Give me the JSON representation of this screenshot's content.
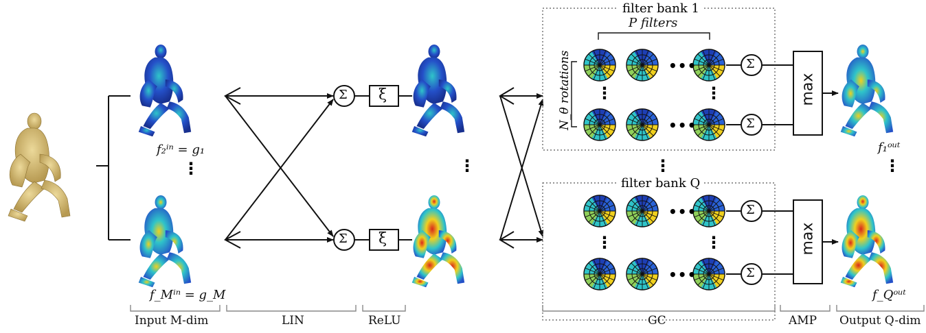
{
  "labels": {
    "input": "Input M-dim",
    "lin": "LIN",
    "relu": "ReLU",
    "gc": "GC",
    "amp": "AMP",
    "output": "Output Q-dim",
    "f2": "f₂ⁱⁿ = g₁",
    "fM": "f_Mⁱⁿ = g_M",
    "f1out": "f₁ᵒᵘᵗ",
    "fQout": "f_Qᵒᵘᵗ",
    "filter_bank_1": "filter bank 1",
    "filter_bank_q": "filter bank Q",
    "p_filters": "P filters",
    "rotations": "N_θ rotations",
    "sum_symbol": "Σ",
    "relu_symbol": "ξ",
    "max_label": "max",
    "ellipsis_h": "•••",
    "ellipsis_v": "⋮"
  },
  "colors": {
    "body_tan": "#d8c07a",
    "heat_low": "#1e3fb5",
    "heat_mid": "#2fc4c9",
    "heat_high": "#f0d01e",
    "heat_max": "#d9281d",
    "line": "#111111"
  }
}
